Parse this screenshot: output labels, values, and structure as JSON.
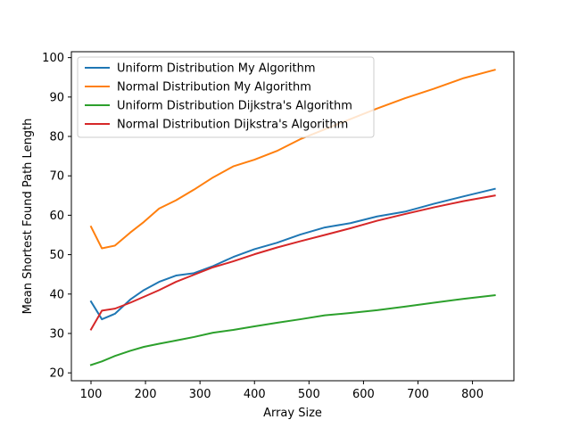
{
  "chart_data": {
    "type": "line",
    "title": "",
    "xlabel": "Array Size",
    "ylabel": "Mean Shortest Found Path Length",
    "xlim": [
      64,
      876
    ],
    "ylim": [
      18,
      101.5
    ],
    "xticks": [
      100,
      200,
      300,
      400,
      500,
      600,
      700,
      800
    ],
    "yticks": [
      20,
      30,
      40,
      50,
      60,
      70,
      80,
      90,
      100
    ],
    "grid": false,
    "legend_position": "upper-left",
    "series": [
      {
        "name": "Uniform Distribution My Algorithm",
        "color": "#1f77b4",
        "x": [
          100,
          120,
          144,
          172,
          197,
          225,
          256,
          289,
          324,
          361,
          400,
          441,
          484,
          529,
          576,
          625,
          676,
          729,
          784,
          841
        ],
        "y": [
          38.1,
          33.6,
          35.0,
          38.6,
          41.0,
          43.1,
          44.7,
          45.3,
          47.1,
          49.4,
          51.4,
          53.0,
          55.1,
          56.9,
          58.0,
          59.7,
          60.9,
          62.9,
          64.8,
          66.7
        ]
      },
      {
        "name": "Normal Distribution My Algorithm",
        "color": "#ff7f0e",
        "x": [
          100,
          120,
          144,
          172,
          197,
          225,
          256,
          289,
          324,
          361,
          400,
          441,
          484,
          529,
          576,
          625,
          676,
          729,
          784,
          841
        ],
        "y": [
          57.1,
          51.6,
          52.3,
          55.6,
          58.3,
          61.7,
          63.8,
          66.5,
          69.6,
          72.4,
          74.1,
          76.3,
          79.3,
          81.8,
          84.4,
          87.1,
          89.7,
          92.1,
          94.8,
          96.9
        ]
      },
      {
        "name": "Uniform Distribution Dijkstra's Algorithm",
        "color": "#2ca02c",
        "x": [
          100,
          120,
          144,
          172,
          197,
          225,
          256,
          289,
          324,
          361,
          400,
          441,
          484,
          529,
          576,
          625,
          676,
          729,
          784,
          841
        ],
        "y": [
          22.0,
          22.9,
          24.3,
          25.6,
          26.6,
          27.4,
          28.2,
          29.1,
          30.2,
          30.9,
          31.8,
          32.7,
          33.6,
          34.6,
          35.2,
          35.9,
          36.8,
          37.8,
          38.8,
          39.7
        ]
      },
      {
        "name": "Normal Distribution Dijkstra's Algorithm",
        "color": "#d62728",
        "x": [
          100,
          120,
          144,
          172,
          197,
          225,
          256,
          289,
          324,
          361,
          400,
          441,
          484,
          529,
          576,
          625,
          676,
          729,
          784,
          841
        ],
        "y": [
          31.0,
          35.8,
          36.3,
          37.8,
          39.3,
          41.0,
          43.1,
          44.9,
          46.8,
          48.3,
          50.1,
          51.8,
          53.4,
          55.0,
          56.7,
          58.6,
          60.3,
          62.0,
          63.6,
          65.0
        ]
      }
    ]
  }
}
